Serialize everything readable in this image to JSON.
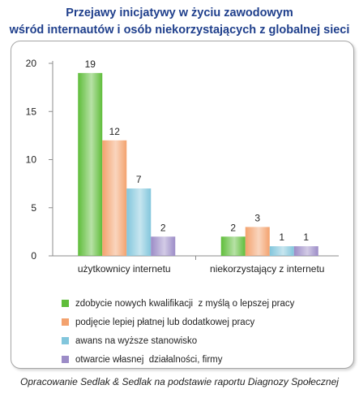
{
  "title_line1": "Przejawy inicjatywy w życiu zawodowym",
  "title_line2": "wśród internautów i osób niekorzystających z globalnej sieci (%)",
  "footer": "Opracowanie Sedlak & Sedlak na podstawie raportu Diagnozy Społecznej",
  "chart_data": {
    "type": "bar",
    "categories": [
      "użytkownicy internetu",
      "niekorzystający z internetu"
    ],
    "series": [
      {
        "name": "zdobycie nowych kwalifikacji  z myślą o lepszej pracy",
        "values": [
          19,
          2
        ],
        "color": "#5fbd3a"
      },
      {
        "name": "podjęcie lepiej płatnej lub dodatkowej pracy",
        "values": [
          12,
          3
        ],
        "color": "#f3a26e"
      },
      {
        "name": "awans na wyższe stanowisko",
        "values": [
          7,
          1
        ],
        "color": "#82c6dc"
      },
      {
        "name": "otwarcie własnej  działalności, firmy",
        "values": [
          2,
          1
        ],
        "color": "#9c8cc7"
      }
    ],
    "ylim": [
      0,
      20
    ],
    "yticks": [
      0,
      5,
      10,
      15,
      20
    ],
    "grid": false,
    "legend": "bottom"
  }
}
